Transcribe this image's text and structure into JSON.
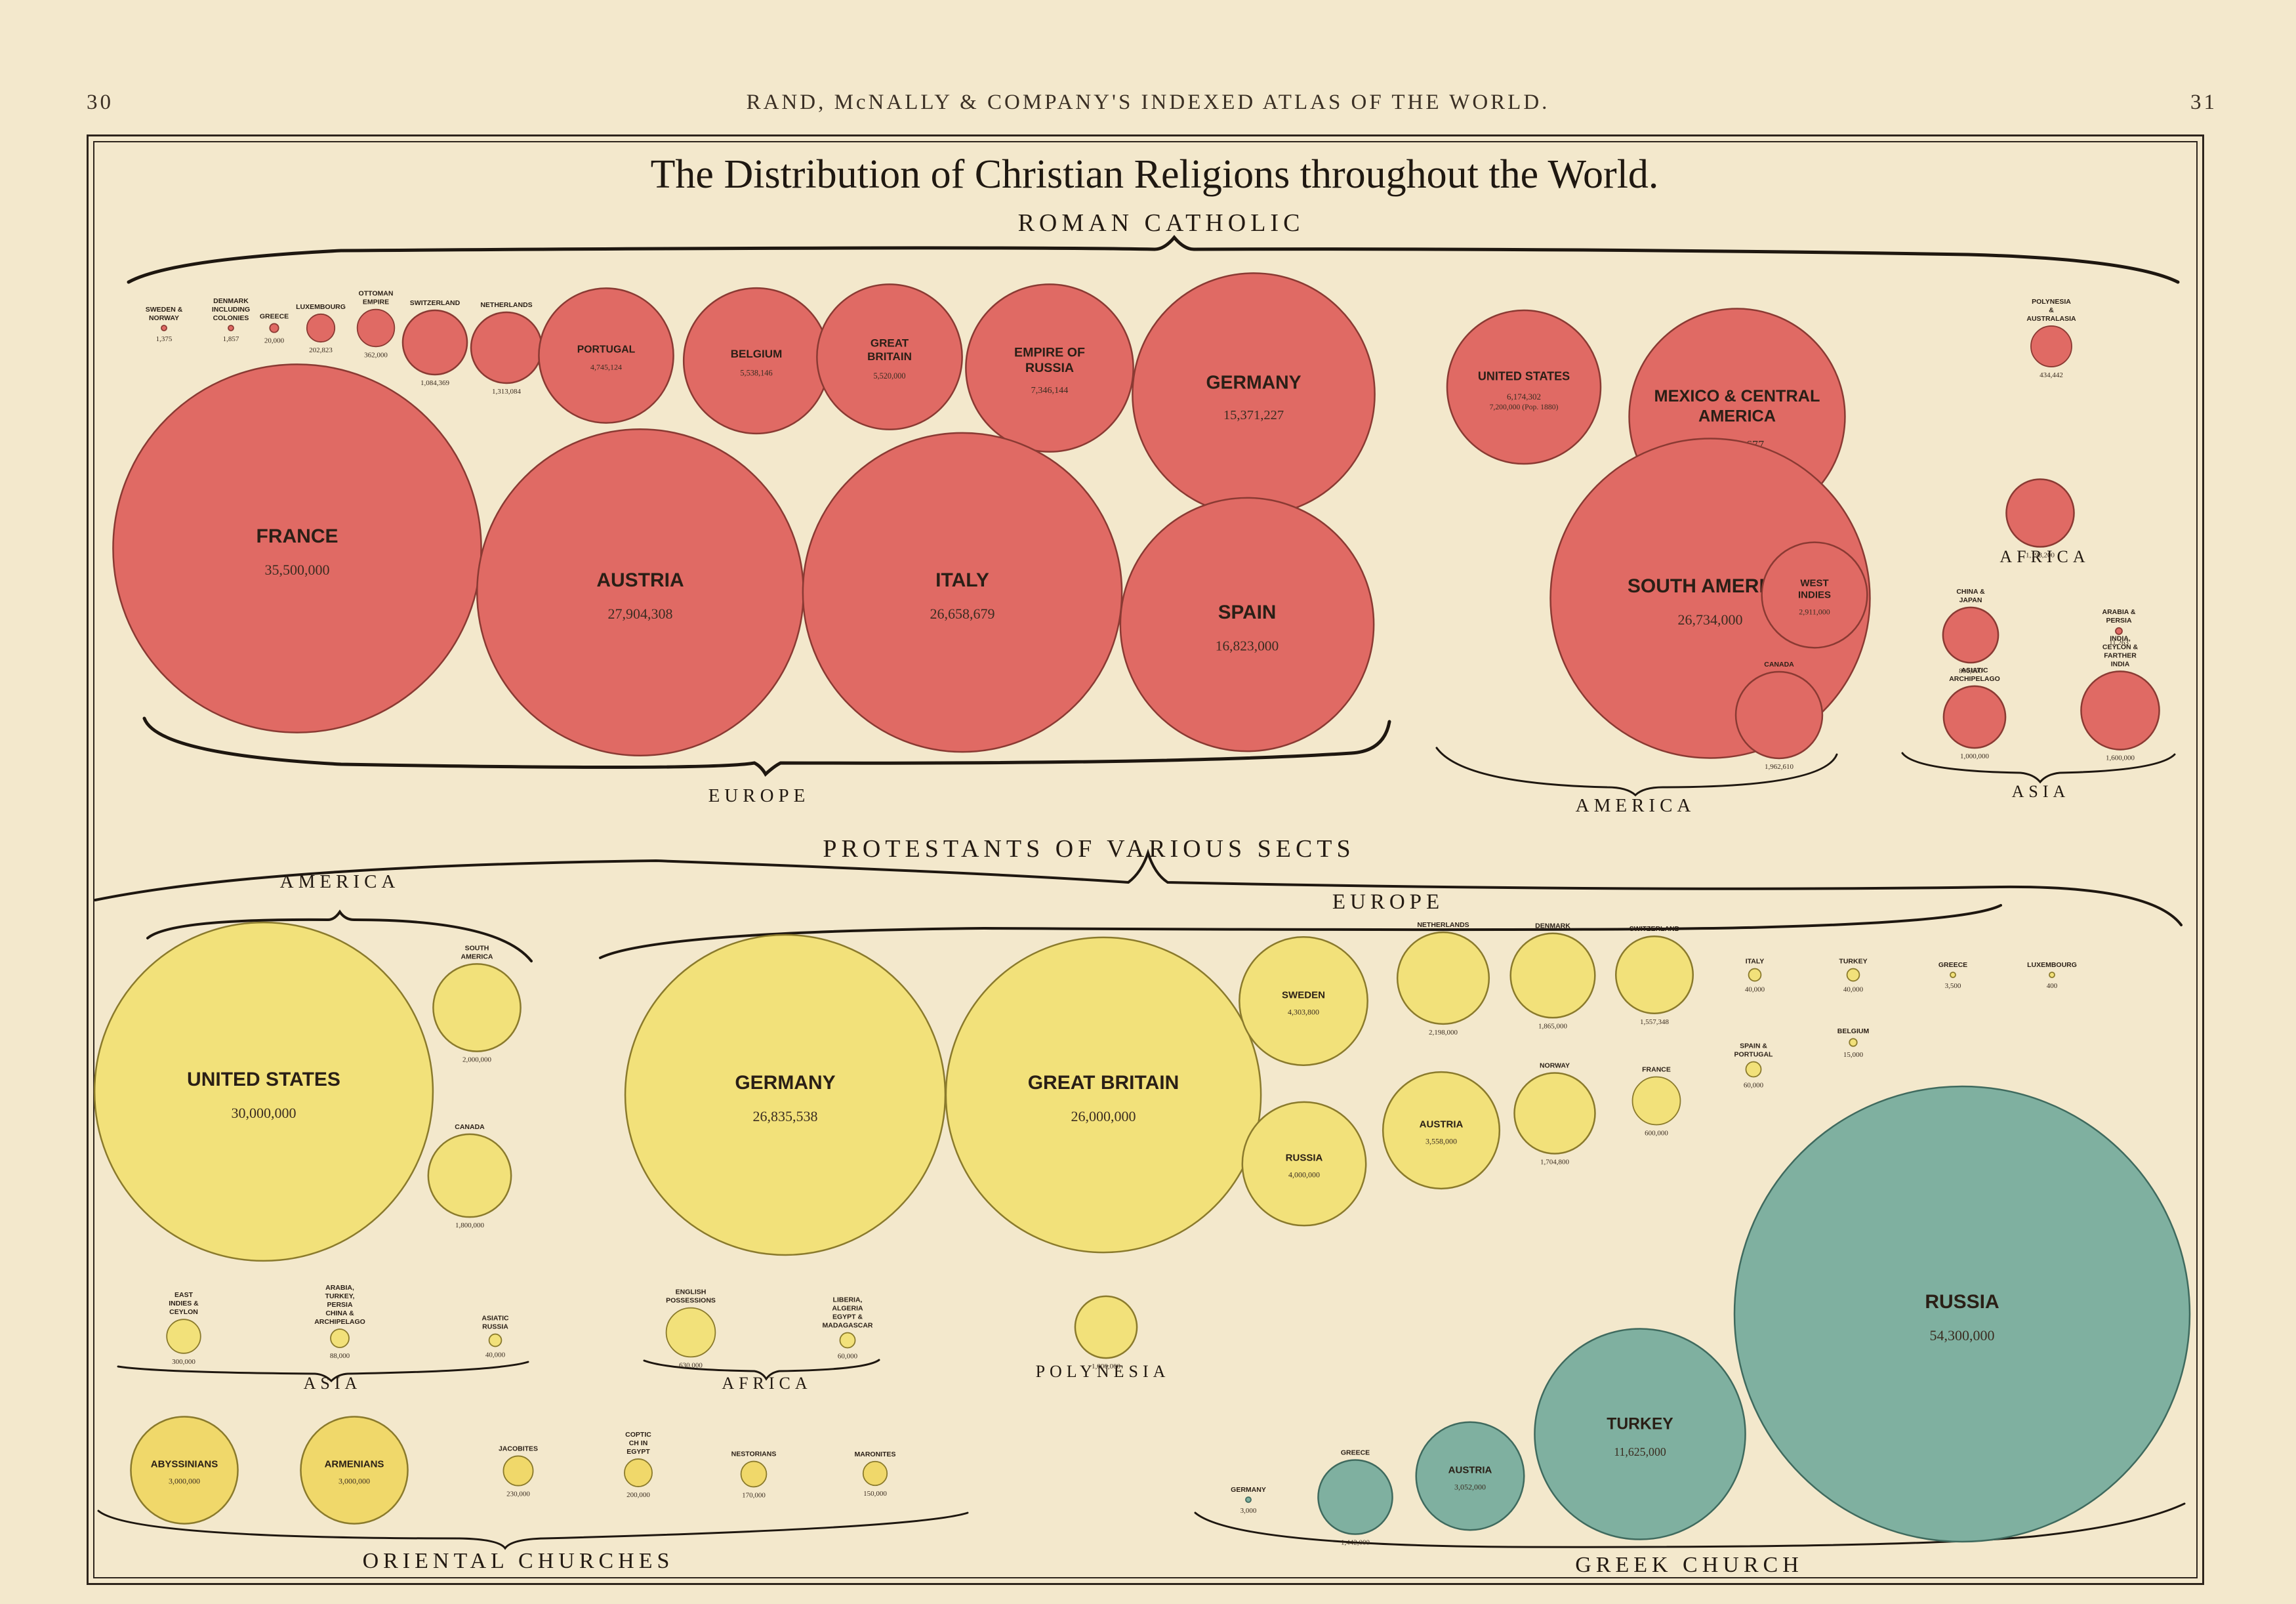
{
  "header": {
    "page_left": "30",
    "center": "RAND, McNALLY & COMPANY'S INDEXED ATLAS OF THE WORLD.",
    "page_right": "31"
  },
  "chart_data": {
    "type": "bubble",
    "title": "The Distribution of Christian Religions throughout the World.",
    "colors": {
      "roman_catholic": "#e06a64",
      "protestant": "#f2e17a",
      "oriental": "#f0d86a",
      "greek": "#7fb0a0",
      "outline": "#7a2f28",
      "background": "#f3e8cc"
    },
    "section_titles": {
      "roman_catholic": "ROMAN CATHOLIC",
      "protestants": "PROTESTANTS OF VARIOUS SECTS",
      "oriental": "ORIENTAL CHURCHES",
      "greek": "GREEK CHURCH"
    },
    "region_labels": [
      {
        "id": "rc-europe",
        "text": "EUROPE"
      },
      {
        "id": "rc-america",
        "text": "AMERICA"
      },
      {
        "id": "rc-asia",
        "text": "ASIA"
      },
      {
        "id": "rc-africa",
        "text": "AFRICA"
      },
      {
        "id": "pr-america",
        "text": "AMERICA"
      },
      {
        "id": "pr-europe",
        "text": "EUROPE"
      },
      {
        "id": "pr-asia",
        "text": "ASIA"
      },
      {
        "id": "pr-africa",
        "text": "AFRICA"
      },
      {
        "id": "pr-polynesia",
        "text": "POLYNESIA"
      }
    ],
    "series": [
      {
        "name": "ROMAN CATHOLIC",
        "points": [
          {
            "label": "SWEDEN & NORWAY",
            "display": "1,375",
            "value": 1375
          },
          {
            "label": "DENMARK INCLUDING COLONIES",
            "display": "1,857",
            "value": 1857
          },
          {
            "label": "GREECE",
            "display": "20,000",
            "value": 20000
          },
          {
            "label": "LUXEMBOURG",
            "display": "202,823",
            "value": 202823
          },
          {
            "label": "OTTOMAN EMPIRE",
            "display": "362,000",
            "value": 362000
          },
          {
            "label": "SWITZERLAND",
            "display": "1,084,369",
            "value": 1084369
          },
          {
            "label": "NETHERLANDS",
            "display": "1,313,084",
            "value": 1313084
          },
          {
            "label": "PORTUGAL",
            "display": "4,745,124",
            "value": 4745124
          },
          {
            "label": "BELGIUM",
            "display": "5,538,146",
            "value": 5538146
          },
          {
            "label": "GREAT BRITAIN",
            "display": "5,520,000",
            "value": 5520000
          },
          {
            "label": "EMPIRE OF RUSSIA",
            "display": "7,346,144",
            "value": 7346144
          },
          {
            "label": "GERMANY",
            "display": "15,371,227",
            "value": 15371227
          },
          {
            "label": "FRANCE",
            "display": "35,500,000",
            "value": 35500000
          },
          {
            "label": "AUSTRIA",
            "display": "27,904,308",
            "value": 27904308
          },
          {
            "label": "ITALY",
            "display": "26,658,679",
            "value": 26658679
          },
          {
            "label": "SPAIN",
            "display": "16,823,000",
            "value": 16823000
          },
          {
            "label": "UNITED STATES",
            "display": "6,174,302",
            "extra": "7,200,000 (Pop. 1880)",
            "value": 6174302
          },
          {
            "label": "MEXICO & CENTRAL AMERICA",
            "display": "12,196,677",
            "value": 12196677
          },
          {
            "label": "SOUTH AMERICA",
            "display": "26,734,000",
            "value": 26734000
          },
          {
            "label": "WEST INDIES",
            "display": "2,911,000",
            "value": 2911000
          },
          {
            "label": "CANADA",
            "display": "1,962,610",
            "value": 1962610
          },
          {
            "label": "POLYNESIA & AUSTRALASIA",
            "display": "434,442",
            "value": 434442
          },
          {
            "label": "",
            "display": "1,198,200",
            "value": 1198200
          },
          {
            "label": "CHINA & JAPAN",
            "display": "800,000",
            "value": 800000
          },
          {
            "label": "ARABIA & PERSIA",
            "display": "11,263",
            "value": 11263
          },
          {
            "label": "ASIATIC ARCHIPELAGO",
            "display": "1,000,000",
            "value": 1000000
          },
          {
            "label": "INDIA, CEYLON & FARTHER INDIA",
            "display": "1,600,000",
            "value": 1600000
          }
        ]
      },
      {
        "name": "PROTESTANTS OF VARIOUS SECTS",
        "points": [
          {
            "label": "UNITED STATES",
            "display": "30,000,000",
            "value": 30000000
          },
          {
            "label": "SOUTH AMERICA",
            "display": "2,000,000",
            "value": 2000000
          },
          {
            "label": "CANADA",
            "display": "1,800,000",
            "value": 1800000
          },
          {
            "label": "GERMANY",
            "display": "26,835,538",
            "value": 26835538
          },
          {
            "label": "GREAT BRITAIN",
            "display": "26,000,000",
            "value": 26000000
          },
          {
            "label": "SWEDEN",
            "display": "4,303,800",
            "value": 4303800
          },
          {
            "label": "NETHERLANDS",
            "display": "2,198,000",
            "value": 2198000
          },
          {
            "label": "DENMARK",
            "display": "1,865,000",
            "value": 1865000
          },
          {
            "label": "SWITZERLAND",
            "display": "1,557,348",
            "value": 1557348
          },
          {
            "label": "RUSSIA",
            "display": "4,000,000",
            "value": 4000000
          },
          {
            "label": "AUSTRIA",
            "display": "3,558,000",
            "value": 3558000
          },
          {
            "label": "NORWAY",
            "display": "1,704,800",
            "value": 1704800
          },
          {
            "label": "FRANCE",
            "display": "600,000",
            "value": 600000
          },
          {
            "label": "ITALY",
            "display": "40,000",
            "value": 40000
          },
          {
            "label": "TURKEY",
            "display": "40,000",
            "value": 40000
          },
          {
            "label": "GREECE",
            "display": "3,500",
            "value": 3500
          },
          {
            "label": "LUXEMBOURG",
            "display": "400",
            "value": 400
          },
          {
            "label": "BELGIUM",
            "display": "15,000",
            "value": 15000
          },
          {
            "label": "SPAIN & PORTUGAL",
            "display": "60,000",
            "value": 60000
          },
          {
            "label": "EAST INDIES & CEYLON",
            "display": "300,000",
            "value": 300000
          },
          {
            "label": "ARABIA, TURKEY, PERSIA CHINA & ARCHIPELAGO",
            "display": "88,000",
            "value": 88000
          },
          {
            "label": "ASIATIC RUSSIA",
            "display": "40,000",
            "value": 40000
          },
          {
            "label": "ENGLISH POSSESSIONS",
            "display": "630,000",
            "value": 630000
          },
          {
            "label": "LIBERIA, ALGERIA EGYPT & MADAGASCAR",
            "display": "60,000",
            "value": 60000
          },
          {
            "label": "",
            "display": "1,000,000",
            "value": 1000000
          }
        ]
      },
      {
        "name": "ORIENTAL CHURCHES",
        "points": [
          {
            "label": "ABYSSINIANS",
            "display": "3,000,000",
            "value": 3000000
          },
          {
            "label": "ARMENIANS",
            "display": "3,000,000",
            "value": 3000000
          },
          {
            "label": "JACOBITES",
            "display": "230,000",
            "value": 230000
          },
          {
            "label": "COPTIC CH IN EGYPT",
            "display": "200,000",
            "value": 200000
          },
          {
            "label": "NESTORIANS",
            "display": "170,000",
            "value": 170000
          },
          {
            "label": "MARONITES",
            "display": "150,000",
            "value": 150000
          }
        ]
      },
      {
        "name": "GREEK CHURCH",
        "points": [
          {
            "label": "GERMANY",
            "display": "3,000",
            "value": 3000
          },
          {
            "label": "GREECE",
            "display": "1,442,000",
            "value": 1442000
          },
          {
            "label": "AUSTRIA",
            "display": "3,052,000",
            "value": 3052000
          },
          {
            "label": "TURKEY",
            "display": "11,625,000",
            "value": 11625000
          },
          {
            "label": "RUSSIA",
            "display": "54,300,000",
            "value": 54300000
          }
        ]
      }
    ]
  }
}
